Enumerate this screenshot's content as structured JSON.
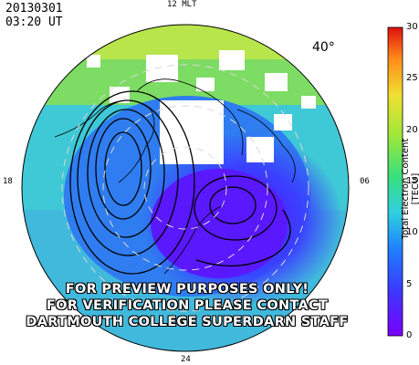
{
  "header": {
    "date": "20130301",
    "time": "03:20  UT"
  },
  "map": {
    "mlt_labels": {
      "top": "12 MLT",
      "left": "18",
      "right": "06",
      "bottom": "24"
    },
    "latitude_label": "40°",
    "colors": {
      "low": "#6a00ff",
      "mid_blue": "#2f6bff",
      "cyan": "#3ad0d8",
      "green": "#6ee070",
      "yellow": "#e8e84a"
    }
  },
  "colorbar": {
    "title": "Total Electron Content [TECU]",
    "ticks": [
      "30",
      "25",
      "20",
      "15",
      "10",
      "5",
      "0"
    ],
    "range": [
      0,
      30
    ]
  },
  "banner": {
    "line1": "FOR PREVIEW PURPOSES ONLY!",
    "line2": "FOR VERIFICATION PLEASE CONTACT",
    "line3": "DARTMOUTH COLLEGE SUPERDARN STAFF"
  }
}
